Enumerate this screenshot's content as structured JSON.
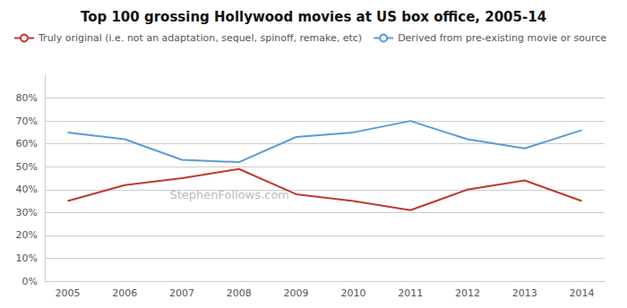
{
  "chart_data": {
    "type": "line",
    "title": "Top 100 grossing Hollywood movies at US box office, 2005-14",
    "x": [
      2005,
      2006,
      2007,
      2008,
      2009,
      2010,
      2011,
      2012,
      2013,
      2014
    ],
    "series": [
      {
        "name": "Truly original (i.e. not an adaptation, sequel, spinoff, remake, etc)",
        "color": "#c0392b",
        "values": [
          0.35,
          0.42,
          0.45,
          0.49,
          0.38,
          0.35,
          0.31,
          0.4,
          0.44,
          0.35
        ]
      },
      {
        "name": "Derived from pre-existing movie or source",
        "color": "#5b9bd5",
        "values": [
          0.65,
          0.62,
          0.53,
          0.52,
          0.63,
          0.65,
          0.7,
          0.62,
          0.58,
          0.66
        ]
      }
    ],
    "xlim": [
      2004.6,
      2014.4
    ],
    "xticks": [
      2005,
      2006,
      2007,
      2008,
      2009,
      2010,
      2011,
      2012,
      2013,
      2014
    ],
    "ylim": [
      0,
      0.9
    ],
    "yticks": [
      {
        "value": 0.0,
        "label": "0%"
      },
      {
        "value": 0.1,
        "label": "10%"
      },
      {
        "value": 0.2,
        "label": "20%"
      },
      {
        "value": 0.3,
        "label": "30%"
      },
      {
        "value": 0.4,
        "label": "40%"
      },
      {
        "value": 0.5,
        "label": "50%"
      },
      {
        "value": 0.6,
        "label": "60%"
      },
      {
        "value": 0.7,
        "label": "70%"
      },
      {
        "value": 0.8,
        "label": "80%"
      }
    ],
    "annotations": [
      {
        "text": "StephenFollows.com"
      }
    ],
    "grid": true,
    "legend": "top"
  }
}
